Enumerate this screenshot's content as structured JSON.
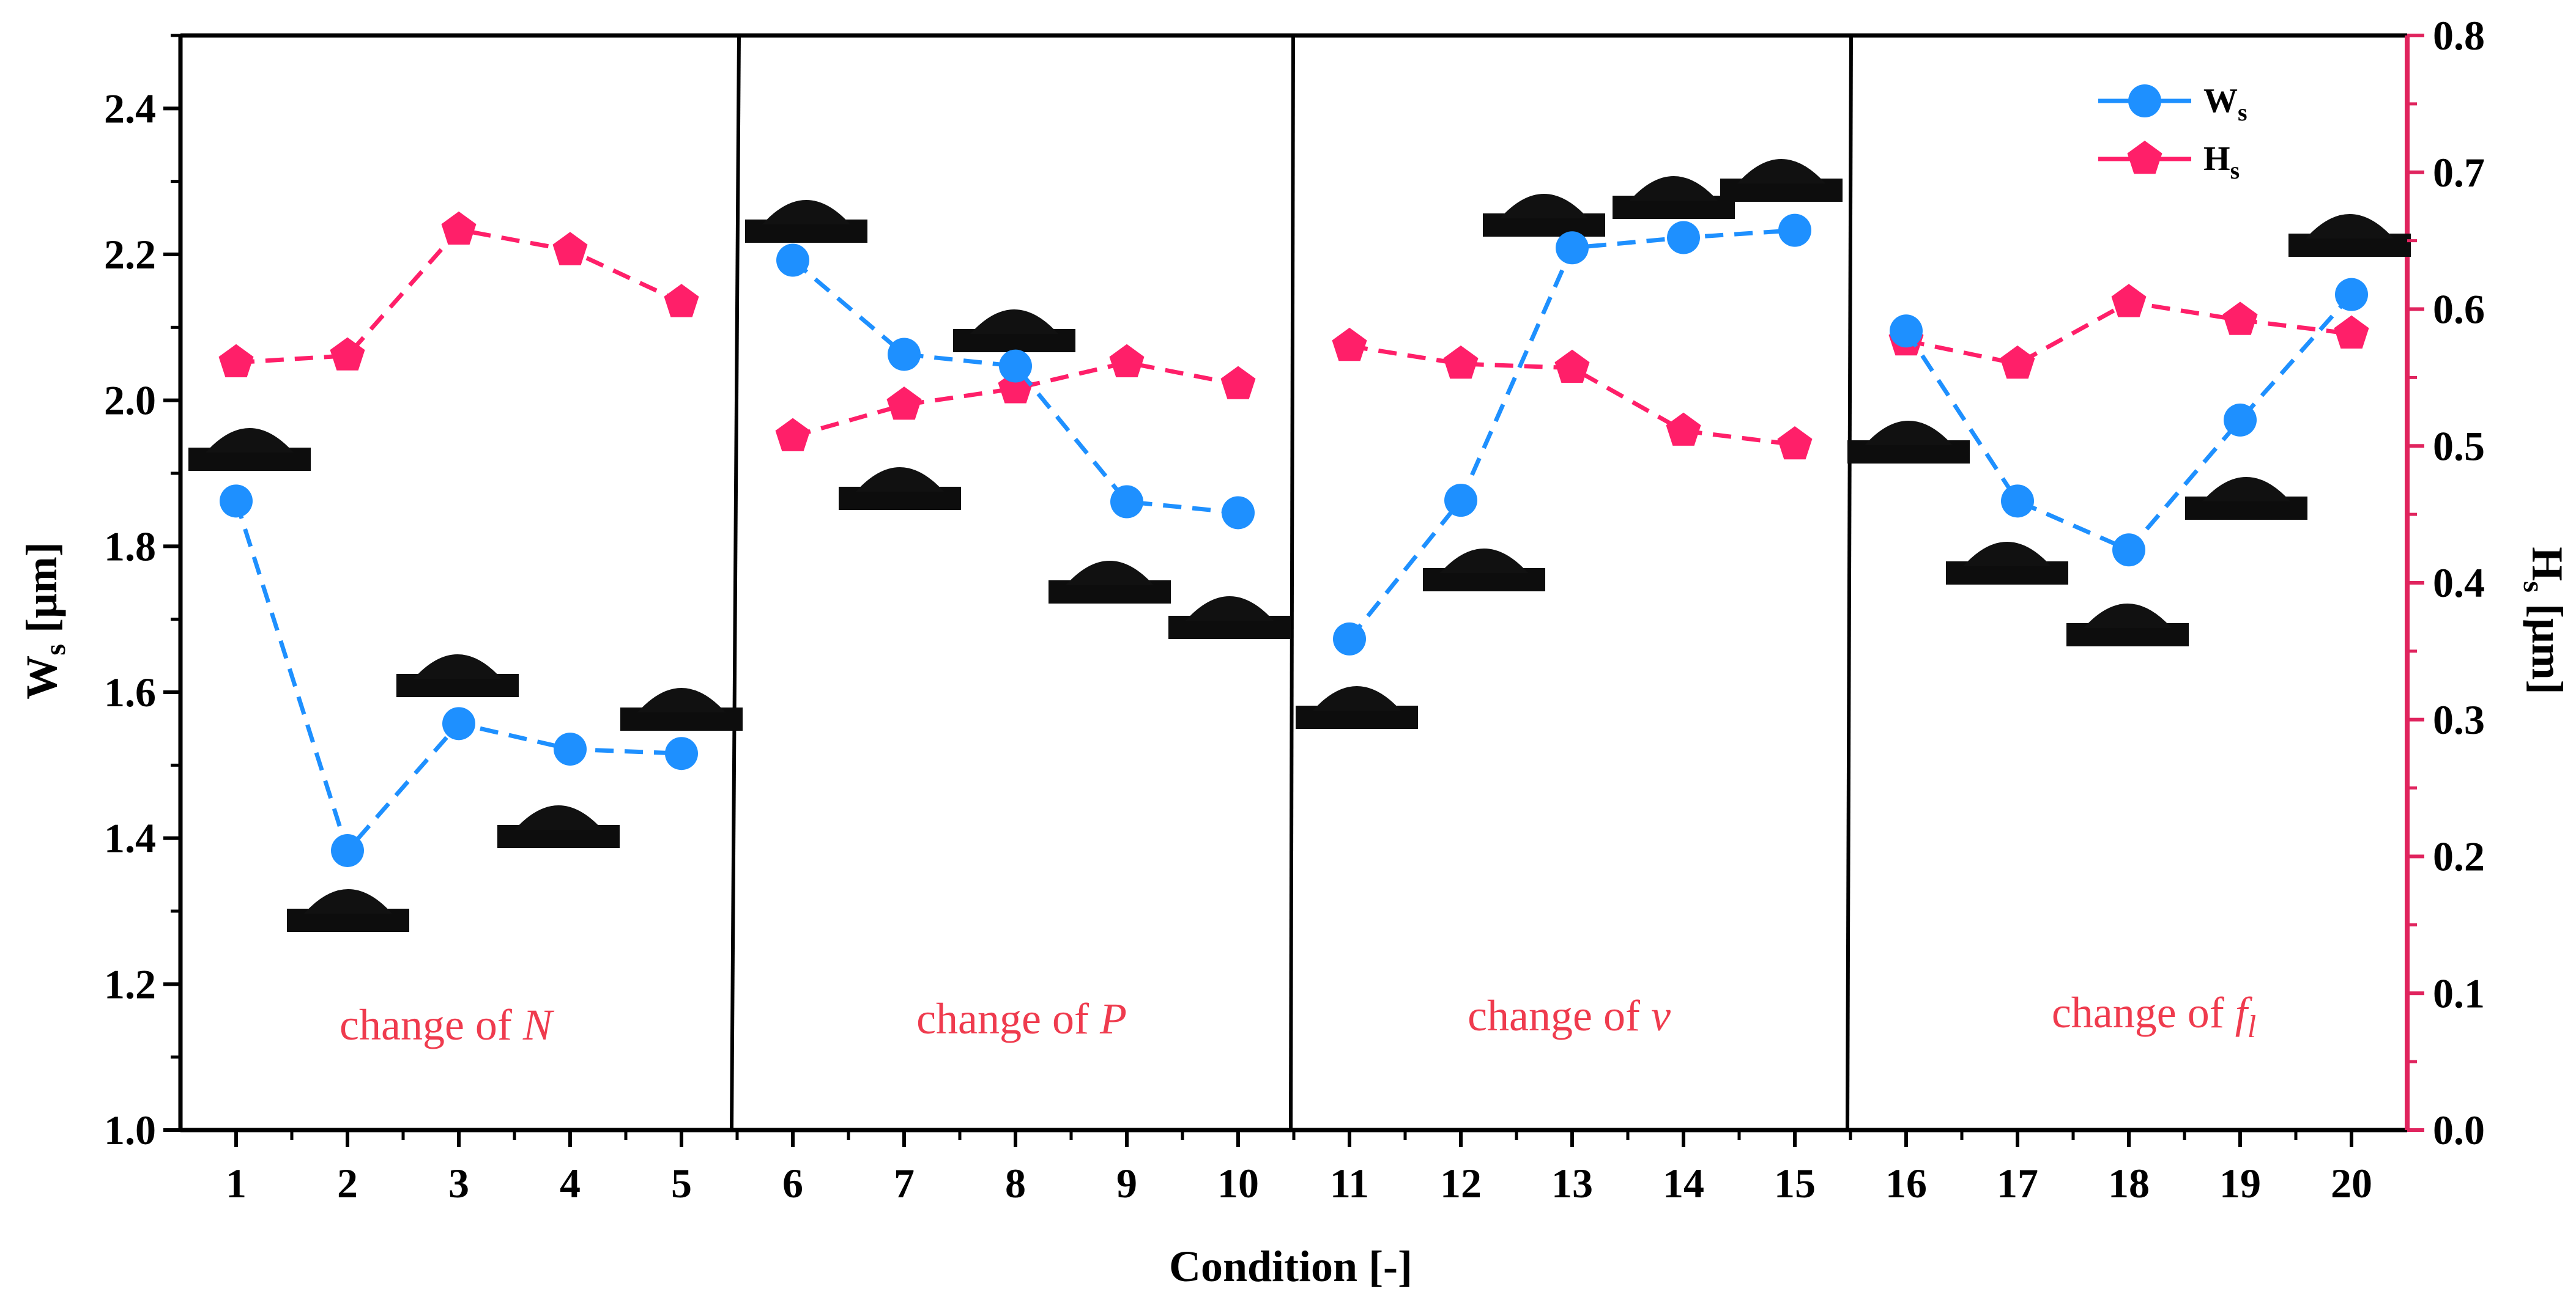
{
  "chart_data": {
    "type": "line",
    "title": "",
    "x": [
      1,
      2,
      3,
      4,
      5,
      6,
      7,
      8,
      9,
      10,
      11,
      12,
      13,
      14,
      15,
      16,
      17,
      18,
      19,
      20
    ],
    "xlabel": "Condition [-]",
    "ylabel_main": "W",
    "ylabel_sub": "s",
    "ylabel_unit": "[μm]",
    "y2label_main": "H",
    "y2label_sub": "s",
    "y2label_unit": "[μm]",
    "ylim": [
      1.0,
      2.5
    ],
    "y2lim": [
      0.0,
      0.8
    ],
    "yticks": [
      "1.0",
      "1.2",
      "1.4",
      "1.6",
      "1.8",
      "2.0",
      "2.2",
      "2.4"
    ],
    "y2ticks": [
      "0.0",
      "0.1",
      "0.2",
      "0.3",
      "0.4",
      "0.5",
      "0.6",
      "0.7",
      "0.8"
    ],
    "xticks": [
      "1",
      "2",
      "3",
      "4",
      "5",
      "6",
      "7",
      "8",
      "9",
      "10",
      "11",
      "12",
      "13",
      "14",
      "15",
      "16",
      "17",
      "18",
      "19",
      "20"
    ],
    "series": [
      {
        "name": "W",
        "name_sub": "s",
        "axis": "left",
        "color": "#1e90ff",
        "marker": "circle",
        "values": [
          1.862,
          1.383,
          1.557,
          1.522,
          1.516,
          2.192,
          2.063,
          2.047,
          1.861,
          1.846,
          1.673,
          1.863,
          2.209,
          2.223,
          2.233,
          2.095,
          1.862,
          1.795,
          1.973,
          2.145
        ]
      },
      {
        "name": "H",
        "name_sub": "s",
        "axis": "right",
        "color": "#ff1f69",
        "marker": "pentagon",
        "values": [
          0.561,
          0.566,
          0.658,
          0.643,
          0.605,
          0.507,
          0.53,
          0.542,
          0.561,
          0.545,
          0.573,
          0.56,
          0.557,
          0.511,
          0.501,
          0.577,
          0.56,
          0.605,
          0.592,
          0.582
        ]
      }
    ],
    "groups": [
      {
        "label": "change of ",
        "var": "N",
        "var_sub": ""
      },
      {
        "label": "change of ",
        "var": "P",
        "var_sub": ""
      },
      {
        "label": "change of ",
        "var": "v",
        "var_sub": ""
      },
      {
        "label": "change of ",
        "var": "f",
        "var_sub": "l"
      }
    ],
    "legend_position": "top-right",
    "secondary_axis_color": "#e0245e"
  }
}
